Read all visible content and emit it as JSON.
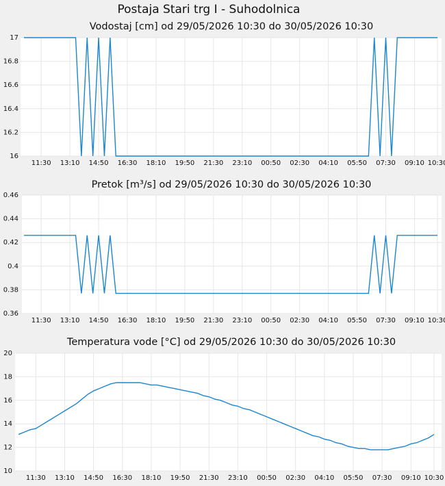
{
  "title": "Postaja Stari trg I - Suhodolnica",
  "chart_data": [
    {
      "type": "line",
      "title": "Vodostaj [cm] od 29/05/2026 10:30 do 30/05/2026 10:30",
      "categories": [
        null,
        null,
        null,
        "11:30",
        null,
        null,
        null,
        null,
        "13:10",
        null,
        null,
        null,
        null,
        "14:50",
        null,
        null,
        null,
        null,
        "16:30",
        null,
        null,
        null,
        null,
        "18:10",
        null,
        null,
        null,
        null,
        "19:50",
        null,
        null,
        null,
        null,
        "21:30",
        null,
        null,
        null,
        null,
        "23:10",
        null,
        null,
        null,
        null,
        "00:50",
        null,
        null,
        null,
        null,
        "02:30",
        null,
        null,
        null,
        null,
        "04:10",
        null,
        null,
        null,
        null,
        "05:50",
        null,
        null,
        null,
        null,
        "07:30",
        null,
        null,
        null,
        null,
        "09:10",
        null,
        null,
        null,
        "10:30"
      ],
      "series": [
        {
          "color": "#1a86cf",
          "values": [
            17,
            17,
            17,
            17,
            17,
            17,
            17,
            17,
            17,
            17,
            16,
            17,
            16,
            17,
            16,
            17,
            16,
            16,
            16,
            16,
            16,
            16,
            16,
            16,
            16,
            16,
            16,
            16,
            16,
            16,
            16,
            16,
            16,
            16,
            16,
            16,
            16,
            16,
            16,
            16,
            16,
            16,
            16,
            16,
            16,
            16,
            16,
            16,
            16,
            16,
            16,
            16,
            16,
            16,
            16,
            16,
            16,
            16,
            16,
            16,
            16,
            17,
            16,
            17,
            16,
            17,
            17,
            17,
            17,
            17,
            17,
            17,
            17
          ]
        }
      ],
      "ylim": [
        16,
        17
      ],
      "yticks": [
        16,
        16.2,
        16.4,
        16.6,
        16.8,
        17
      ],
      "grid": true
    },
    {
      "type": "line",
      "title": "Pretok [m³/s] od 29/05/2026 10:30 do 30/05/2026 10:30",
      "categories": [
        null,
        null,
        null,
        "11:30",
        null,
        null,
        null,
        null,
        "13:10",
        null,
        null,
        null,
        null,
        "14:50",
        null,
        null,
        null,
        null,
        "16:30",
        null,
        null,
        null,
        null,
        "18:10",
        null,
        null,
        null,
        null,
        "19:50",
        null,
        null,
        null,
        null,
        "21:30",
        null,
        null,
        null,
        null,
        "23:10",
        null,
        null,
        null,
        null,
        "00:50",
        null,
        null,
        null,
        null,
        "02:30",
        null,
        null,
        null,
        null,
        "04:10",
        null,
        null,
        null,
        null,
        "05:50",
        null,
        null,
        null,
        null,
        "07:30",
        null,
        null,
        null,
        null,
        "09:10",
        null,
        null,
        null,
        "10:30"
      ],
      "series": [
        {
          "color": "#1a86cf",
          "values": [
            0.426,
            0.426,
            0.426,
            0.426,
            0.426,
            0.426,
            0.426,
            0.426,
            0.426,
            0.426,
            0.377,
            0.426,
            0.377,
            0.426,
            0.377,
            0.426,
            0.377,
            0.377,
            0.377,
            0.377,
            0.377,
            0.377,
            0.377,
            0.377,
            0.377,
            0.377,
            0.377,
            0.377,
            0.377,
            0.377,
            0.377,
            0.377,
            0.377,
            0.377,
            0.377,
            0.377,
            0.377,
            0.377,
            0.377,
            0.377,
            0.377,
            0.377,
            0.377,
            0.377,
            0.377,
            0.377,
            0.377,
            0.377,
            0.377,
            0.377,
            0.377,
            0.377,
            0.377,
            0.377,
            0.377,
            0.377,
            0.377,
            0.377,
            0.377,
            0.377,
            0.377,
            0.426,
            0.377,
            0.426,
            0.377,
            0.426,
            0.426,
            0.426,
            0.426,
            0.426,
            0.426,
            0.426,
            0.426
          ]
        }
      ],
      "ylim": [
        0.36,
        0.46
      ],
      "yticks": [
        0.36,
        0.38,
        0.4,
        0.42,
        0.44,
        0.46
      ],
      "grid": true
    },
    {
      "type": "line",
      "title": "Temperatura vode [°C] od 29/05/2026 10:30 do 30/05/2026 10:30",
      "categories": [
        null,
        null,
        null,
        "11:30",
        null,
        null,
        null,
        null,
        "13:10",
        null,
        null,
        null,
        null,
        "14:50",
        null,
        null,
        null,
        null,
        "16:30",
        null,
        null,
        null,
        null,
        "18:10",
        null,
        null,
        null,
        null,
        "19:50",
        null,
        null,
        null,
        null,
        "21:30",
        null,
        null,
        null,
        null,
        "23:10",
        null,
        null,
        null,
        null,
        "00:50",
        null,
        null,
        null,
        null,
        "02:30",
        null,
        null,
        null,
        null,
        "04:10",
        null,
        null,
        null,
        null,
        "05:50",
        null,
        null,
        null,
        null,
        "07:30",
        null,
        null,
        null,
        null,
        "09:10",
        null,
        null,
        null,
        "10:30"
      ],
      "series": [
        {
          "color": "#1a86cf",
          "values": [
            13.1,
            13.3,
            13.5,
            13.6,
            13.9,
            14.2,
            14.5,
            14.8,
            15.1,
            15.4,
            15.7,
            16.1,
            16.5,
            16.8,
            17.0,
            17.2,
            17.4,
            17.5,
            17.5,
            17.5,
            17.5,
            17.5,
            17.4,
            17.3,
            17.3,
            17.2,
            17.1,
            17.0,
            16.9,
            16.8,
            16.7,
            16.6,
            16.4,
            16.3,
            16.1,
            16.0,
            15.8,
            15.6,
            15.5,
            15.3,
            15.2,
            15.0,
            14.8,
            14.6,
            14.4,
            14.2,
            14.0,
            13.8,
            13.6,
            13.4,
            13.2,
            13.0,
            12.9,
            12.7,
            12.6,
            12.4,
            12.3,
            12.1,
            12.0,
            11.9,
            11.9,
            11.8,
            11.8,
            11.8,
            11.8,
            11.9,
            12.0,
            12.1,
            12.3,
            12.4,
            12.6,
            12.8,
            13.1
          ]
        }
      ],
      "ylim": [
        10,
        20
      ],
      "yticks": [
        10,
        12,
        14,
        16,
        18,
        20
      ],
      "grid": true
    }
  ]
}
